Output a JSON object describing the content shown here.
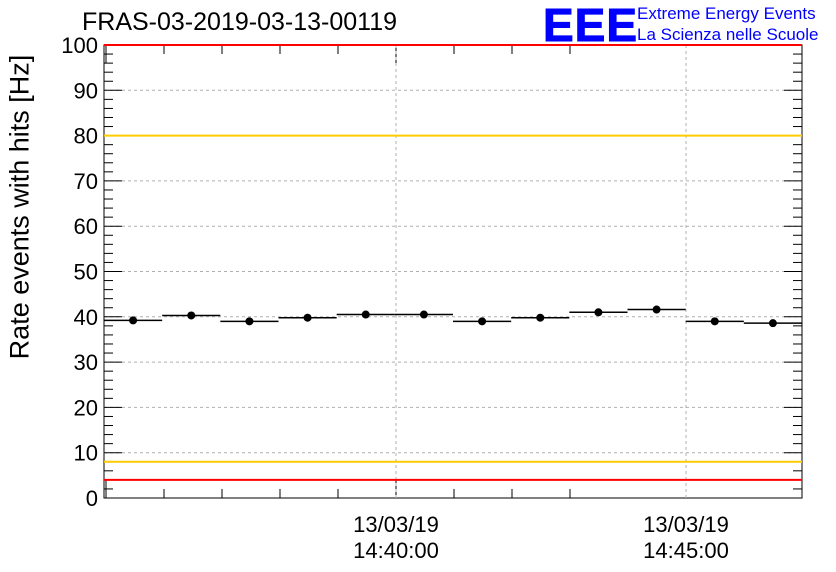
{
  "chart_data": {
    "type": "scatter",
    "title": "FRAS-03-2019-03-13-00119",
    "ylabel": "Rate events with hits [Hz]",
    "ylim": [
      0,
      100
    ],
    "yticks": [
      0,
      10,
      20,
      30,
      40,
      50,
      60,
      70,
      80,
      90,
      100
    ],
    "xticks": [
      {
        "date": "13/03/19",
        "time": "14:40:00"
      },
      {
        "date": "13/03/19",
        "time": "14:45:00"
      }
    ],
    "grid": true,
    "reference_lines": [
      {
        "y": 100,
        "color": "#ff0000"
      },
      {
        "y": 80,
        "color": "#ffcc00"
      },
      {
        "y": 8,
        "color": "#ffcc00"
      },
      {
        "y": 4,
        "color": "#ff0000"
      }
    ],
    "series": [
      {
        "values": [
          39.2,
          40.3,
          39.0,
          39.8,
          40.5,
          40.5,
          39.0,
          39.8,
          41.0,
          41.6,
          39.0,
          38.6
        ]
      }
    ]
  },
  "logo": {
    "mark": "EEE",
    "line1": "Extreme Energy Events",
    "line2": "La Scienza nelle Scuole"
  },
  "colors": {
    "logo": "#0000ff",
    "points": "#000000",
    "grid": "#b0b0b0"
  }
}
